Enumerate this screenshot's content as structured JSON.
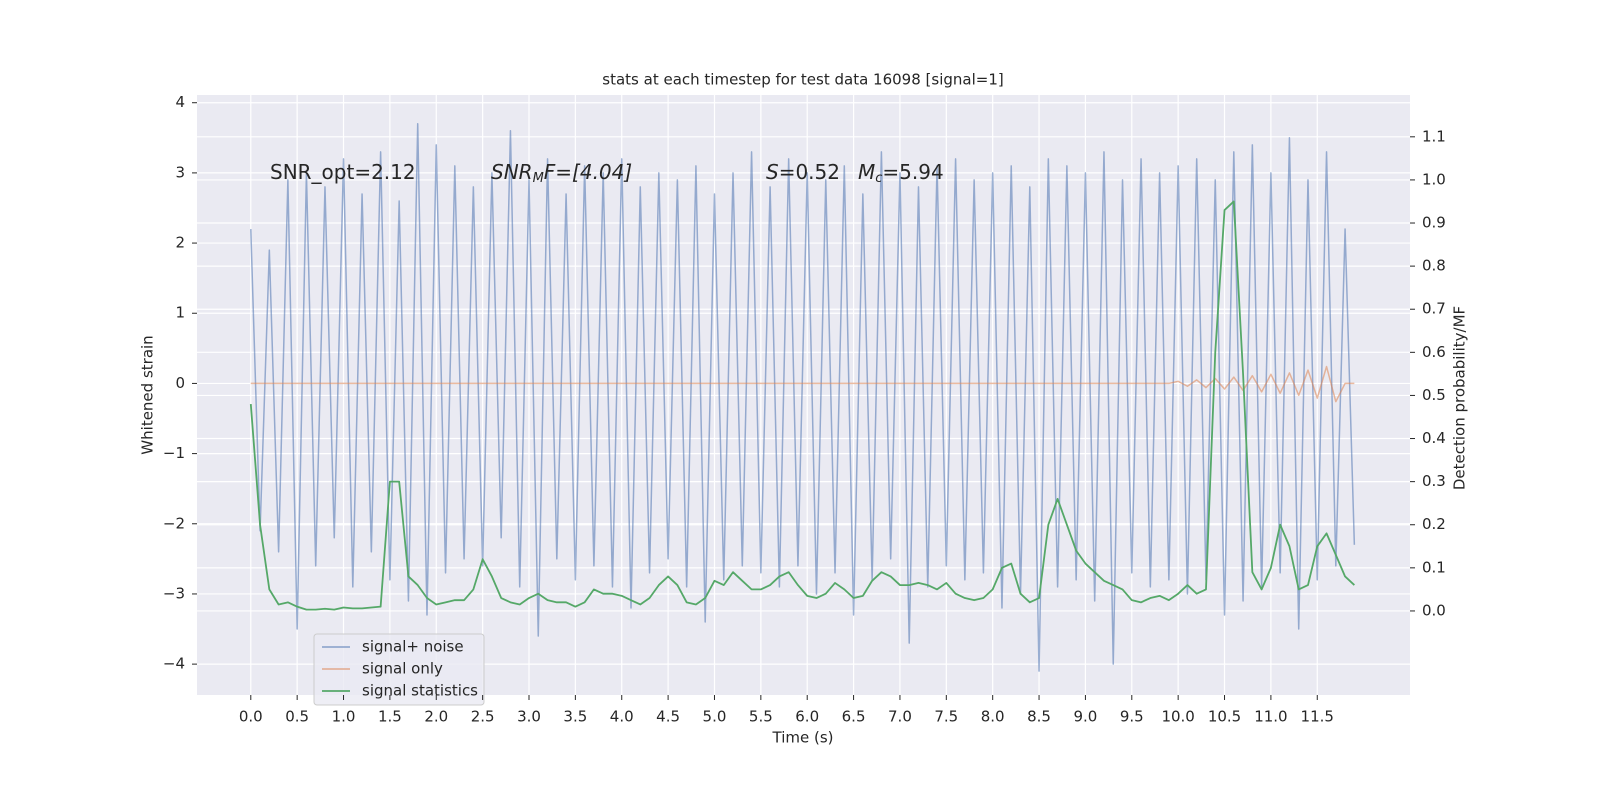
{
  "chart_data": {
    "type": "line",
    "title": "stats at each timestep for test data 16098 [signal=1]",
    "xlabel": "Time (s)",
    "ylabel": "Whitened strain",
    "y2label": "Detection probability/MF",
    "annotations": [
      {
        "parts": [
          "SNR_opt=2.12"
        ]
      },
      {
        "parts": [
          "SNR",
          "M",
          "F=[4.04]"
        ]
      },
      {
        "parts": [
          "S",
          "=0.52",
          "M",
          "c",
          "=5.94"
        ]
      }
    ],
    "x": [
      0,
      0.1,
      0.2,
      0.3,
      0.4,
      0.5,
      0.6,
      0.7,
      0.8,
      0.9,
      1,
      1.1,
      1.2,
      1.3,
      1.4,
      1.5,
      1.6,
      1.7,
      1.8,
      1.9,
      2,
      2.1,
      2.2,
      2.3,
      2.4,
      2.5,
      2.6,
      2.7,
      2.8,
      2.9,
      3,
      3.1,
      3.2,
      3.3,
      3.4,
      3.5,
      3.6,
      3.7,
      3.8,
      3.9,
      4,
      4.1,
      4.2,
      4.3,
      4.4,
      4.5,
      4.6,
      4.7,
      4.8,
      4.9,
      5,
      5.1,
      5.2,
      5.3,
      5.4,
      5.5,
      5.6,
      5.7,
      5.8,
      5.9,
      6,
      6.1,
      6.2,
      6.3,
      6.4,
      6.5,
      6.6,
      6.7,
      6.8,
      6.9,
      7,
      7.1,
      7.2,
      7.3,
      7.4,
      7.5,
      7.6,
      7.7,
      7.8,
      7.9,
      8,
      8.1,
      8.2,
      8.3,
      8.4,
      8.5,
      8.6,
      8.7,
      8.8,
      8.9,
      9,
      9.1,
      9.2,
      9.3,
      9.4,
      9.5,
      9.6,
      9.7,
      9.8,
      9.9,
      10,
      10.1,
      10.2,
      10.3,
      10.4,
      10.5,
      10.6,
      10.7,
      10.8,
      10.9,
      11,
      11.1,
      11.2,
      11.3,
      11.4,
      11.5,
      11.6,
      11.7,
      11.8,
      11.9
    ],
    "series": [
      {
        "name": "signal+ noise",
        "color": "#4c72b0",
        "axis": "y",
        "values": [
          2.2,
          -2.1,
          1.9,
          -2.4,
          2.9,
          -3.5,
          3.0,
          -2.6,
          2.8,
          -2.2,
          3.2,
          -2.9,
          2.7,
          -2.4,
          3.3,
          -2.8,
          2.6,
          -3.1,
          3.7,
          -3.3,
          3.4,
          -2.7,
          3.1,
          -2.5,
          2.8,
          -2.6,
          3.0,
          -2.2,
          3.6,
          -2.9,
          2.9,
          -3.6,
          3.2,
          -2.5,
          2.7,
          -2.8,
          3.1,
          -2.6,
          3.0,
          -2.9,
          3.2,
          -3.2,
          2.8,
          -2.7,
          3.0,
          -2.5,
          2.9,
          -2.9,
          3.1,
          -3.4,
          2.7,
          -2.8,
          3.0,
          -2.6,
          3.3,
          -2.7,
          2.8,
          -2.9,
          3.2,
          -2.6,
          3.0,
          -3.0,
          2.9,
          -2.7,
          3.1,
          -3.3,
          2.7,
          -2.8,
          3.3,
          -2.5,
          3.0,
          -3.7,
          2.8,
          -2.9,
          3.1,
          -2.6,
          3.2,
          -2.8,
          2.9,
          -2.7,
          3.0,
          -3.2,
          3.1,
          -3.0,
          2.8,
          -4.1,
          3.2,
          -2.9,
          3.1,
          -2.8,
          3.0,
          -3.1,
          3.3,
          -4.0,
          2.9,
          -2.7,
          3.2,
          -2.9,
          3.0,
          -2.8,
          3.1,
          -3.0,
          3.2,
          -2.8,
          2.9,
          -3.3,
          3.3,
          -3.1,
          3.4,
          -2.9,
          3.0,
          -2.7,
          3.5,
          -3.5,
          2.9,
          -2.8,
          3.3,
          -2.6,
          2.2,
          -2.3
        ]
      },
      {
        "name": "signal only",
        "color": "#dd8452",
        "axis": "y",
        "values": [
          0,
          0,
          0,
          0,
          0,
          0,
          0,
          0,
          0,
          0,
          0,
          0,
          0,
          0,
          0,
          0,
          0,
          0,
          0,
          0,
          0,
          0,
          0,
          0,
          0,
          0,
          0,
          0,
          0,
          0,
          0,
          0,
          0,
          0,
          0,
          0,
          0,
          0,
          0,
          0,
          0,
          0,
          0,
          0,
          0,
          0,
          0,
          0,
          0,
          0,
          0,
          0,
          0,
          0,
          0,
          0,
          0,
          0,
          0,
          0,
          0,
          0,
          0,
          0,
          0,
          0,
          0,
          0,
          0,
          0,
          0,
          0,
          0,
          0,
          0,
          0,
          0,
          0,
          0,
          0,
          0,
          0,
          0,
          0,
          0,
          0,
          0,
          0,
          0,
          0,
          0,
          0,
          0,
          0,
          0,
          0,
          0,
          0,
          0,
          0,
          0.03,
          -0.04,
          0.05,
          -0.06,
          0.07,
          -0.08,
          0.09,
          -0.1,
          0.11,
          -0.12,
          0.13,
          -0.14,
          0.15,
          -0.17,
          0.19,
          -0.21,
          0.24,
          -0.26,
          0,
          0
        ]
      },
      {
        "name": "signal statistics",
        "color": "#55a868",
        "axis": "y2",
        "values": [
          0.48,
          0.2,
          0.05,
          0.015,
          0.02,
          0.01,
          0.003,
          0.003,
          0.005,
          0.003,
          0.008,
          0.006,
          0.006,
          0.008,
          0.01,
          0.3,
          0.3,
          0.08,
          0.06,
          0.03,
          0.015,
          0.02,
          0.025,
          0.025,
          0.05,
          0.12,
          0.08,
          0.03,
          0.02,
          0.015,
          0.03,
          0.04,
          0.025,
          0.02,
          0.02,
          0.01,
          0.02,
          0.05,
          0.04,
          0.04,
          0.035,
          0.025,
          0.015,
          0.03,
          0.06,
          0.08,
          0.06,
          0.02,
          0.015,
          0.03,
          0.07,
          0.06,
          0.09,
          0.07,
          0.05,
          0.05,
          0.06,
          0.08,
          0.09,
          0.06,
          0.035,
          0.03,
          0.04,
          0.065,
          0.05,
          0.03,
          0.035,
          0.07,
          0.09,
          0.08,
          0.06,
          0.06,
          0.065,
          0.06,
          0.05,
          0.065,
          0.04,
          0.03,
          0.025,
          0.03,
          0.05,
          0.1,
          0.11,
          0.04,
          0.02,
          0.03,
          0.2,
          0.26,
          0.2,
          0.14,
          0.11,
          0.09,
          0.07,
          0.06,
          0.05,
          0.025,
          0.02,
          0.03,
          0.035,
          0.025,
          0.04,
          0.06,
          0.04,
          0.05,
          0.6,
          0.93,
          0.95,
          0.55,
          0.09,
          0.05,
          0.1,
          0.2,
          0.15,
          0.05,
          0.06,
          0.15,
          0.18,
          0.13,
          0.08,
          0.06
        ]
      }
    ],
    "xlim": [
      -0.58,
      12.5
    ],
    "xticks": [
      {
        "value": 0,
        "label": "0.0"
      },
      0.5,
      {
        "value": 1,
        "label": "1.0"
      },
      1.5,
      {
        "value": 2,
        "label": "2.0"
      },
      2.5,
      {
        "value": 3,
        "label": "3.0"
      },
      3.5,
      {
        "value": 4,
        "label": "4.0"
      },
      4.5,
      {
        "value": 5,
        "label": "5.0"
      },
      5.5,
      {
        "value": 6,
        "label": "6.0"
      },
      6.5,
      {
        "value": 7,
        "label": "7.0"
      },
      7.5,
      {
        "value": 8,
        "label": "8.0"
      },
      8.5,
      {
        "value": 9,
        "label": "9.0"
      },
      9.5,
      {
        "value": 10,
        "label": "10.0"
      },
      10.5,
      {
        "value": 11,
        "label": "11.0"
      },
      11.5
    ],
    "ylim": [
      -4.44,
      4.11
    ],
    "yticks": [
      {
        "value": -4,
        "label": "−4"
      },
      {
        "value": -3,
        "label": "−3"
      },
      {
        "value": -2,
        "label": "−2"
      },
      {
        "value": -1,
        "label": "−1"
      },
      0,
      1,
      2,
      3,
      4
    ],
    "y2lim": [
      -0.195,
      1.197
    ],
    "y2ticks": [
      {
        "value": 0,
        "label": "0.0"
      },
      0.1,
      0.2,
      0.3,
      0.4,
      0.5,
      0.6,
      0.7,
      0.8,
      0.9,
      {
        "value": 1,
        "label": "1.0"
      },
      1.1
    ],
    "grid": true
  }
}
